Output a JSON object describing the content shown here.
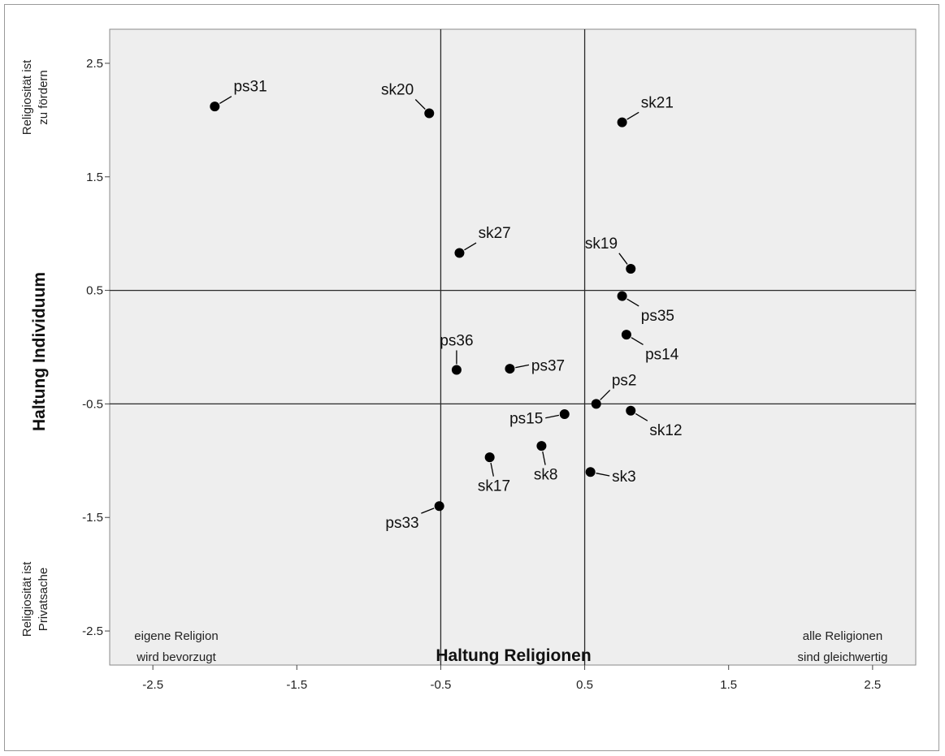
{
  "chart_data": {
    "type": "scatter",
    "xlabel": "Haltung Religionen",
    "ylabel": "Haltung Individuum",
    "xlim": [
      -2.8,
      2.8
    ],
    "ylim": [
      -2.8,
      2.8
    ],
    "xticks": [
      -2.5,
      -1.5,
      -0.5,
      0.5,
      1.5,
      2.5
    ],
    "yticks": [
      2.5,
      1.5,
      0.5,
      -0.5,
      -1.5,
      -2.5
    ],
    "xtick_labels": [
      "-2.5",
      "-1.5",
      "-0.5",
      "0.5",
      "1.5",
      "2.5"
    ],
    "ytick_labels": [
      "2.5",
      "1.5",
      "0.5",
      "-0.5",
      "-1.5",
      "-2.5"
    ],
    "reference_lines": {
      "x": [
        -0.5,
        0.5
      ],
      "y": [
        0.5,
        -0.5
      ]
    },
    "grid": false,
    "x_annotations": {
      "left": [
        "eigene Religion",
        "wird bevorzugt"
      ],
      "right": [
        "alle Religionen",
        "sind gleichwertig"
      ]
    },
    "y_annotations": {
      "top": [
        "Religiosität ist",
        "zu fördern"
      ],
      "bottom": [
        "Religiosität ist",
        "Privatsache"
      ]
    },
    "points": [
      {
        "label": "ps31",
        "x": -2.07,
        "y": 2.12,
        "label_dx": 5,
        "label_dy": -3
      },
      {
        "label": "sk20",
        "x": -0.58,
        "y": 2.06,
        "label_dx": -3,
        "label_dy": -3
      },
      {
        "label": "sk21",
        "x": 0.76,
        "y": 1.98,
        "label_dx": 5,
        "label_dy": -3
      },
      {
        "label": "sk27",
        "x": -0.37,
        "y": 0.83,
        "label_dx": 5,
        "label_dy": -3
      },
      {
        "label": "sk19",
        "x": 0.82,
        "y": 0.69,
        "label_dx": -3,
        "label_dy": -4
      },
      {
        "label": "ps35",
        "x": 0.76,
        "y": 0.45,
        "label_dx": 5,
        "label_dy": 3
      },
      {
        "label": "ps14",
        "x": 0.79,
        "y": 0.11,
        "label_dx": 5,
        "label_dy": 3
      },
      {
        "label": "ps36",
        "x": -0.39,
        "y": -0.2,
        "label_dx": 0,
        "label_dy": -5
      },
      {
        "label": "ps37",
        "x": -0.02,
        "y": -0.19,
        "label_dx": 5,
        "label_dy": -1
      },
      {
        "label": "ps2",
        "x": 0.58,
        "y": -0.5,
        "label_dx": 4,
        "label_dy": -4
      },
      {
        "label": "sk12",
        "x": 0.82,
        "y": -0.56,
        "label_dx": 5,
        "label_dy": 3
      },
      {
        "label": "ps15",
        "x": 0.36,
        "y": -0.59,
        "label_dx": -5,
        "label_dy": 1
      },
      {
        "label": "sk8",
        "x": 0.2,
        "y": -0.87,
        "label_dx": 1,
        "label_dy": 5
      },
      {
        "label": "sk17",
        "x": -0.16,
        "y": -0.97,
        "label_dx": 1,
        "label_dy": 5
      },
      {
        "label": "sk3",
        "x": 0.54,
        "y": -1.1,
        "label_dx": 5,
        "label_dy": 1
      },
      {
        "label": "ps33",
        "x": -0.51,
        "y": -1.4,
        "label_dx": -5,
        "label_dy": 2
      }
    ],
    "colors": {
      "plot_background": "#eeeeee",
      "points": "#000000",
      "reference_lines": "#2a2a2a"
    }
  }
}
